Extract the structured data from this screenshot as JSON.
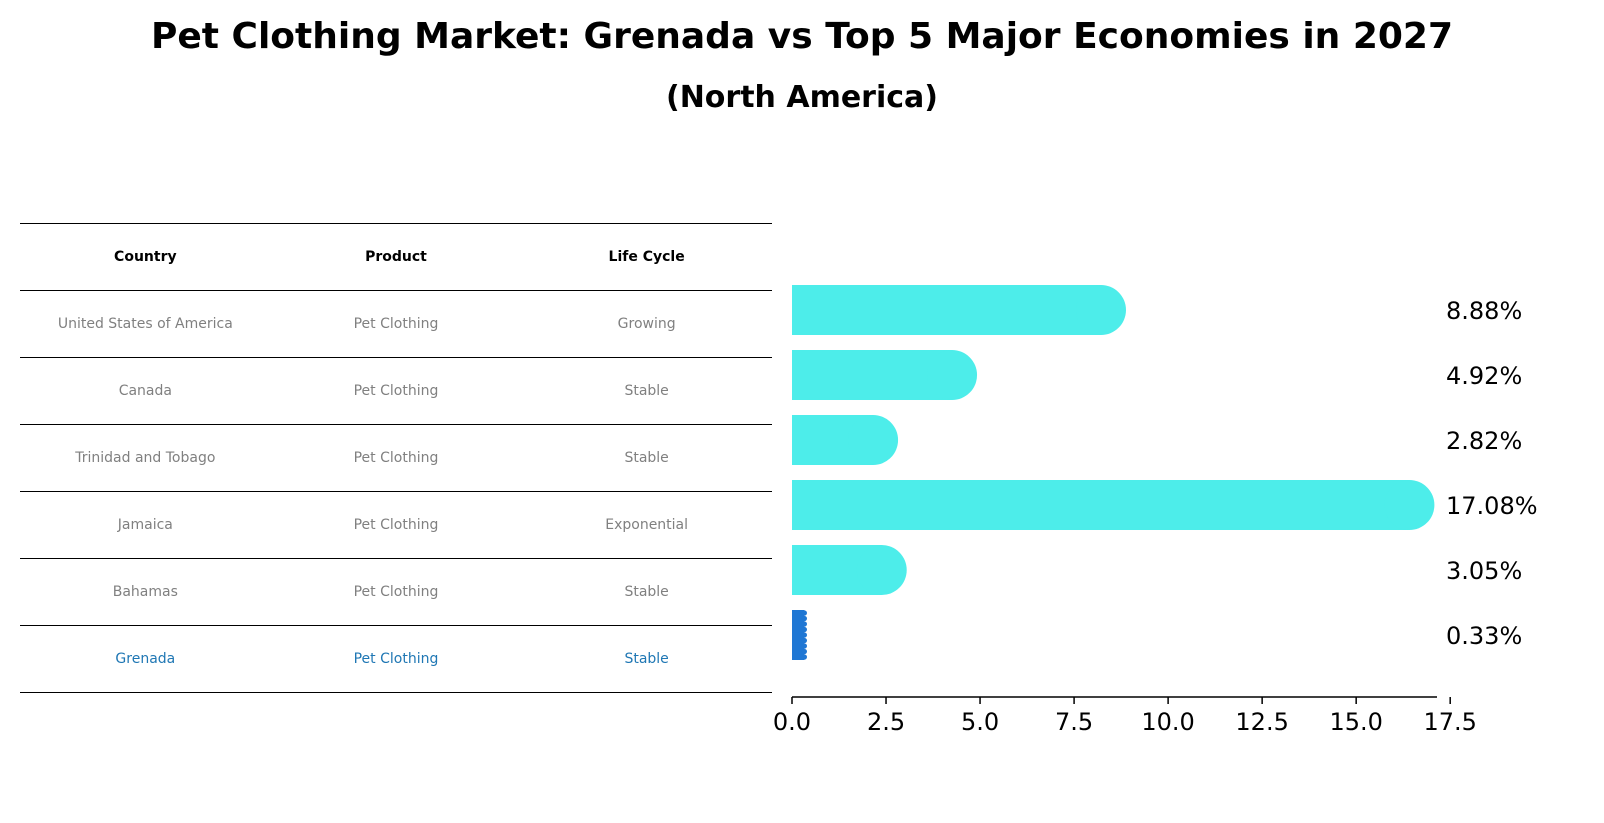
{
  "title": "Pet Clothing Market: Grenada vs Top 5 Major Economies in 2027",
  "subtitle": "(North America)",
  "table": {
    "headers": [
      "Country",
      "Product",
      "Life Cycle"
    ],
    "rows": [
      [
        "United States of America",
        "Pet Clothing",
        "Growing"
      ],
      [
        "Canada",
        "Pet Clothing",
        "Stable"
      ],
      [
        "Trinidad and Tobago",
        "Pet Clothing",
        "Stable"
      ],
      [
        "Jamaica",
        "Pet Clothing",
        "Exponential"
      ],
      [
        "Bahamas",
        "Pet Clothing",
        "Stable"
      ],
      [
        "Grenada",
        "Pet Clothing",
        "Stable"
      ]
    ],
    "highlight_row": 5
  },
  "colors": {
    "bar": "#4DEDEA",
    "highlight": "#1F77D4",
    "highlight_text": "#1F77B4"
  },
  "chart_data": {
    "type": "bar",
    "orientation": "horizontal",
    "title": "Pet Clothing Market: Grenada vs Top 5 Major Economies in 2027",
    "categories": [
      "United States of America",
      "Canada",
      "Trinidad and Tobago",
      "Jamaica",
      "Bahamas",
      "Grenada"
    ],
    "values": [
      8.88,
      4.92,
      2.82,
      17.08,
      3.05,
      0.33
    ],
    "value_labels": [
      "8.88%",
      "4.92%",
      "2.82%",
      "17.08%",
      "3.05%",
      "0.33%"
    ],
    "xlim": [
      0,
      18
    ],
    "xticks": [
      0.0,
      2.5,
      5.0,
      7.5,
      10.0,
      12.5,
      15.0,
      17.5
    ],
    "xtick_labels": [
      "0.0",
      "2.5",
      "5.0",
      "7.5",
      "10.0",
      "12.5",
      "15.0",
      "17.5"
    ],
    "xlabel": "",
    "ylabel": "",
    "grid": false,
    "legend": "none"
  }
}
